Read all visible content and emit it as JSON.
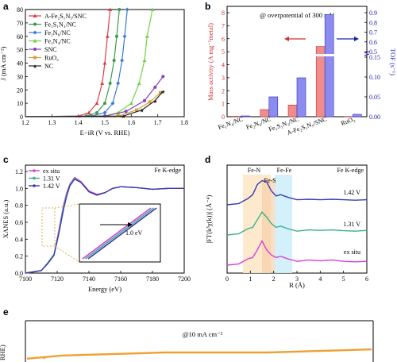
{
  "chart_data": [
    {
      "panel": "a",
      "type": "line",
      "xlabel": "E−iR (V vs. RHE)",
      "ylabel": "J (mA cm⁻²)",
      "xlim": [
        1.2,
        1.8
      ],
      "ylim": [
        0,
        80
      ],
      "xticks": [
        "1.2",
        "1.3",
        "1.4",
        "1.5",
        "1.6",
        "1.7",
        "1.8"
      ],
      "yticks": [
        "0",
        "10",
        "20",
        "30",
        "40",
        "50",
        "60",
        "70",
        "80"
      ],
      "legend_position": "top-left",
      "series": [
        {
          "name": "A-Fe₂S₁N₅/SNC",
          "color": "#e03c46",
          "marker": "triangle",
          "x": [
            1.2,
            1.4,
            1.44,
            1.47,
            1.49,
            1.5,
            1.51,
            1.52
          ],
          "y": [
            0,
            0.5,
            3,
            10,
            25,
            40,
            60,
            80
          ]
        },
        {
          "name": "Fe₁S₁N₃/NC",
          "color": "#3c9a4a",
          "marker": "circle",
          "x": [
            1.2,
            1.43,
            1.47,
            1.5,
            1.52,
            1.535,
            1.545,
            1.555
          ],
          "y": [
            0,
            0.5,
            3,
            10,
            25,
            42,
            60,
            80
          ]
        },
        {
          "name": "Fe₂N₆/NC",
          "color": "#3a7bd5",
          "marker": "diamond",
          "x": [
            1.2,
            1.45,
            1.5,
            1.53,
            1.55,
            1.565,
            1.575,
            1.585
          ],
          "y": [
            0,
            0.5,
            3,
            10,
            25,
            42,
            60,
            80
          ]
        },
        {
          "name": "Fe₁N₄/NC",
          "color": "#6ed34a",
          "marker": "triangle",
          "x": [
            1.2,
            1.5,
            1.55,
            1.6,
            1.63,
            1.65,
            1.66,
            1.68
          ],
          "y": [
            0,
            0.5,
            3,
            10,
            25,
            42,
            60,
            80
          ]
        },
        {
          "name": "SNC",
          "color": "#8a3fb0",
          "marker": "circle",
          "x": [
            1.2,
            1.5,
            1.58,
            1.65,
            1.69,
            1.72
          ],
          "y": [
            0,
            0.5,
            4,
            12,
            22,
            30
          ]
        },
        {
          "name": "RuO₂",
          "color": "#d9a03f",
          "marker": "square",
          "x": [
            1.2,
            1.55,
            1.62,
            1.67,
            1.71
          ],
          "y": [
            0,
            0.5,
            5,
            11,
            18
          ]
        },
        {
          "name": "NC",
          "color": "#222222",
          "marker": "star",
          "x": [
            1.2,
            1.57,
            1.64,
            1.69,
            1.72
          ],
          "y": [
            0,
            0.5,
            5,
            12,
            19
          ]
        }
      ]
    },
    {
      "panel": "b",
      "type": "bar",
      "title": "@ overpotential of 300 mV",
      "ylabel_left": "Mass activity (A mg⁻¹metal)",
      "ylabel_right": "TOF (s⁻¹)",
      "yticks_left": [
        "0",
        "1",
        "2",
        "3",
        "4",
        "5",
        "6",
        "7",
        "8"
      ],
      "yticks_right": [
        "0.00",
        "0.05",
        "0.10",
        "0.15",
        "0.5",
        "0.6",
        "0.7",
        "0.8",
        "0.9"
      ],
      "categories": [
        "Fe₁N₄/NC",
        "Fe₂N₆/NC",
        "Fe₁S₁N₃/NC",
        "A-Fe₂S₁N₅/SNC",
        "RuO₂"
      ],
      "series": [
        {
          "name": "Mass activity",
          "axis": "left",
          "color": "#f08c8c",
          "values": [
            0.03,
            0.55,
            0.9,
            5.4,
            0.02
          ]
        },
        {
          "name": "TOF",
          "axis": "right",
          "color": "#8c8cf0",
          "values": [
            0.002,
            0.05,
            0.098,
            0.88,
            0.006
          ]
        }
      ]
    },
    {
      "panel": "c",
      "type": "line",
      "title": "Fe K-edge",
      "xlabel": "Energy (eV)",
      "ylabel": "XANES (a.u.)",
      "xlim": [
        7100,
        7200
      ],
      "ylim": [
        0,
        1.2
      ],
      "xticks": [
        "7100",
        "7120",
        "7140",
        "7160",
        "7180",
        "7200"
      ],
      "yticks": [
        "0.0",
        "0.2",
        "0.4",
        "0.6",
        "0.8",
        "1.0",
        "1.2"
      ],
      "inset_annotation": "1.0 eV",
      "series": [
        {
          "name": "ex situ",
          "color": "#d63fd6",
          "x": [
            7100,
            7110,
            7114,
            7118,
            7121,
            7124,
            7126,
            7128,
            7131,
            7135,
            7140,
            7145,
            7150,
            7155,
            7160,
            7170,
            7180,
            7190,
            7200
          ],
          "y": [
            0.0,
            0.03,
            0.12,
            0.22,
            0.5,
            0.8,
            0.95,
            1.05,
            1.13,
            1.08,
            0.97,
            0.93,
            0.95,
            1.0,
            1.02,
            1.01,
            0.99,
            1.0,
            1.0
          ]
        },
        {
          "name": "1.31 V",
          "color": "#3cb08a",
          "x": [
            7100,
            7110,
            7114,
            7118,
            7121,
            7124,
            7126,
            7128,
            7131,
            7135,
            7140,
            7145,
            7150,
            7155,
            7160,
            7170,
            7180,
            7190,
            7200
          ],
          "y": [
            0.0,
            0.03,
            0.12,
            0.22,
            0.48,
            0.78,
            0.93,
            1.04,
            1.12,
            1.07,
            0.96,
            0.92,
            0.95,
            1.0,
            1.02,
            1.01,
            0.99,
            1.0,
            1.0
          ]
        },
        {
          "name": "1.42 V",
          "color": "#3a3ab0",
          "x": [
            7100,
            7110,
            7114,
            7118,
            7121,
            7124,
            7126,
            7128,
            7131,
            7135,
            7140,
            7145,
            7150,
            7155,
            7160,
            7170,
            7180,
            7190,
            7200
          ],
          "y": [
            0.0,
            0.03,
            0.11,
            0.21,
            0.46,
            0.75,
            0.91,
            1.03,
            1.11,
            1.07,
            0.96,
            0.92,
            0.95,
            1.0,
            1.02,
            1.01,
            0.99,
            1.0,
            1.0
          ]
        }
      ]
    },
    {
      "panel": "d",
      "type": "line",
      "title": "Fe K-edge",
      "xlabel": "R (Å)",
      "ylabel": "|FT(k³χ(k))| (Å⁻⁴)",
      "xlim": [
        0,
        6
      ],
      "xticks": [
        "0",
        "1",
        "2",
        "3",
        "4",
        "5",
        "6"
      ],
      "band_labels": [
        "Fe-N",
        "Fe-S",
        "Fe-Fe"
      ],
      "series": [
        {
          "name": "1.42 V",
          "color": "#3a3ab0",
          "x": [
            0,
            0.5,
            0.9,
            1.1,
            1.3,
            1.5,
            1.7,
            1.9,
            2.1,
            2.3,
            2.6,
            3.0,
            3.5,
            4.0,
            4.5,
            5.0,
            5.5,
            6.0
          ],
          "y": [
            0.0,
            0.05,
            0.25,
            0.4,
            0.8,
            0.95,
            0.9,
            0.55,
            0.35,
            0.4,
            0.3,
            0.2,
            0.22,
            0.2,
            0.22,
            0.2,
            0.18,
            0.2
          ]
        },
        {
          "name": "1.31 V",
          "color": "#3cb08a",
          "x": [
            0,
            0.5,
            0.9,
            1.1,
            1.3,
            1.5,
            1.7,
            1.9,
            2.1,
            2.3,
            2.6,
            3.0,
            3.5,
            4.0,
            4.5,
            5.0,
            5.5,
            6.0
          ],
          "y": [
            0.0,
            0.05,
            0.25,
            0.3,
            0.6,
            0.9,
            0.7,
            0.45,
            0.3,
            0.35,
            0.25,
            0.15,
            0.2,
            0.18,
            0.2,
            0.17,
            0.15,
            0.18
          ]
        },
        {
          "name": "ex situ",
          "color": "#d63fd6",
          "x": [
            0,
            0.5,
            0.9,
            1.1,
            1.3,
            1.5,
            1.7,
            1.9,
            2.1,
            2.3,
            2.6,
            3.0,
            3.5,
            4.0,
            4.5,
            5.0,
            5.5,
            6.0
          ],
          "y": [
            0.0,
            0.05,
            0.25,
            0.3,
            0.6,
            0.95,
            0.6,
            0.4,
            0.3,
            0.35,
            0.25,
            0.15,
            0.2,
            0.17,
            0.2,
            0.15,
            0.13,
            0.15
          ]
        }
      ]
    },
    {
      "panel": "e",
      "type": "line",
      "annotation": "@10 mA cm⁻²",
      "ylabel": "s. RHE)",
      "series": [
        {
          "name": "stability",
          "color": "#f0a030",
          "x": [
            0,
            1,
            2,
            3,
            4,
            5,
            6,
            7,
            8,
            9,
            10
          ],
          "y": [
            0.57,
            0.585,
            0.59,
            0.595,
            0.6,
            0.6,
            0.6,
            0.6,
            0.605,
            0.61,
            0.615
          ]
        }
      ]
    }
  ]
}
